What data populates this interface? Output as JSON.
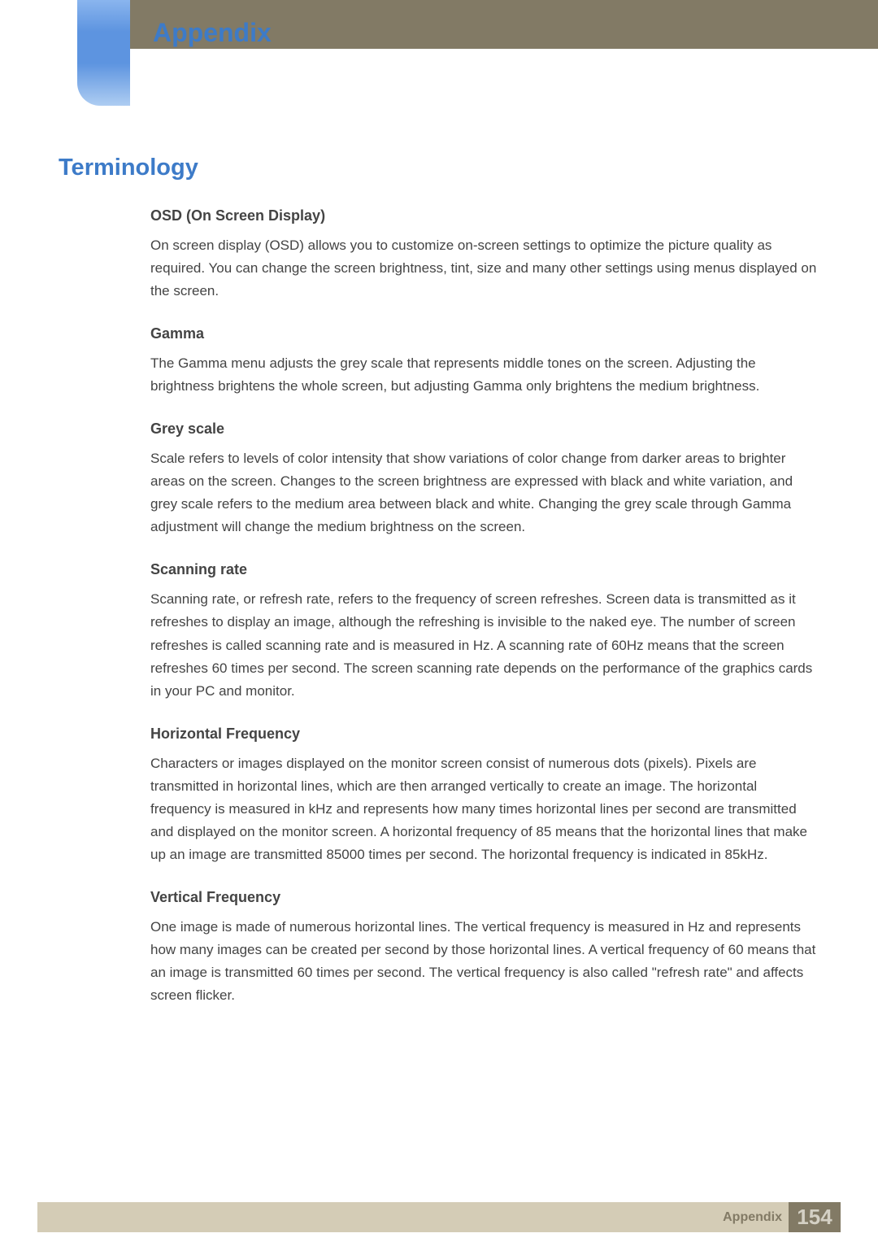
{
  "header": {
    "chapter_title": "Appendix",
    "colors": {
      "bar_bg": "#827a65",
      "tab_gradient_top": "#8ab5ee",
      "tab_gradient_mid": "#5d94e0",
      "tab_gradient_bottom": "#aecdf2",
      "title_color": "#3d7bc8"
    }
  },
  "section": {
    "title": "Terminology",
    "title_color": "#3d7bc8"
  },
  "terms": [
    {
      "title": "OSD (On Screen Display)",
      "body": "On screen display (OSD) allows you to customize on-screen settings to optimize the picture quality as required. You can change the screen brightness, tint, size and many other settings using menus displayed on the screen."
    },
    {
      "title": "Gamma",
      "body": "The Gamma menu adjusts the grey scale that represents middle tones on the screen. Adjusting the brightness brightens the whole screen, but adjusting Gamma only brightens the medium brightness."
    },
    {
      "title": "Grey scale",
      "body": "Scale refers to levels of color intensity that show variations of color change from darker areas to brighter areas on the screen. Changes to the screen brightness are expressed with black and white variation, and grey scale refers to the medium area between black and white. Changing the grey scale through Gamma adjustment will change the medium brightness on the screen."
    },
    {
      "title": "Scanning rate",
      "body": "Scanning rate, or refresh rate, refers to the frequency of screen refreshes. Screen data is transmitted as it refreshes to display an image, although the refreshing is invisible to the naked eye. The number of screen refreshes is called scanning rate and is measured in Hz. A scanning rate of 60Hz means that the screen refreshes 60 times per second. The screen scanning rate depends on the performance of the graphics cards in your PC and monitor."
    },
    {
      "title": "Horizontal Frequency",
      "body": "Characters or images displayed on the monitor screen consist of numerous dots (pixels). Pixels are transmitted in horizontal lines, which are then arranged vertically to create an image. The horizontal frequency is measured in kHz and represents how many times horizontal lines per second are transmitted and displayed on the monitor screen. A horizontal frequency of 85 means that the horizontal lines that make up an image are transmitted 85000 times per second. The horizontal frequency is indicated in 85kHz."
    },
    {
      "title": "Vertical Frequency",
      "body": "One image is made of numerous horizontal lines. The vertical frequency is measured in Hz and represents how many images can be created per second by those horizontal lines. A vertical frequency of 60 means that an image is transmitted 60 times per second. The vertical frequency is also called \"refresh rate\" and affects screen flicker."
    }
  ],
  "footer": {
    "label": "Appendix",
    "page_number": "154",
    "colors": {
      "beige_bg": "#d4ccb6",
      "box_bg": "#827a65",
      "label_color": "#827a65",
      "number_color": "#d4d0c4"
    }
  }
}
